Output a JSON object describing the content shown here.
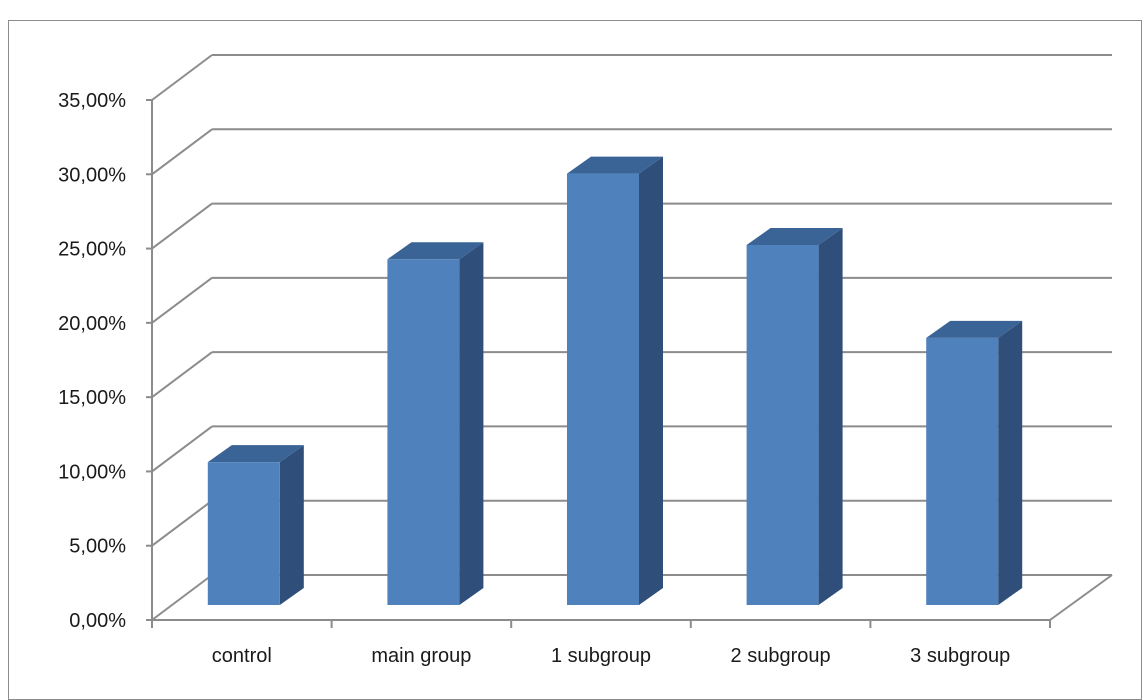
{
  "chart_data": {
    "type": "bar",
    "style": "3d-column",
    "title": "",
    "xlabel": "",
    "ylabel": "",
    "categories": [
      "control",
      "main group",
      "1 subgroup",
      "2 subgroup",
      "3 subgroup"
    ],
    "values": [
      0.1,
      0.242,
      0.302,
      0.252,
      0.187
    ],
    "ylim": [
      0,
      0.35
    ],
    "y_ticks": [
      0,
      0.05,
      0.1,
      0.15,
      0.2,
      0.25,
      0.3,
      0.35
    ],
    "y_tick_labels": [
      "0,00%",
      "5,00%",
      "10,00%",
      "15,00%",
      "20,00%",
      "25,00%",
      "30,00%",
      "35,00%"
    ],
    "grid": true,
    "legend": "none",
    "colors": {
      "front": "#4f81bd",
      "side": "#2f4f7a",
      "top": "#3a6396",
      "grid": "#8c8c8c"
    }
  }
}
